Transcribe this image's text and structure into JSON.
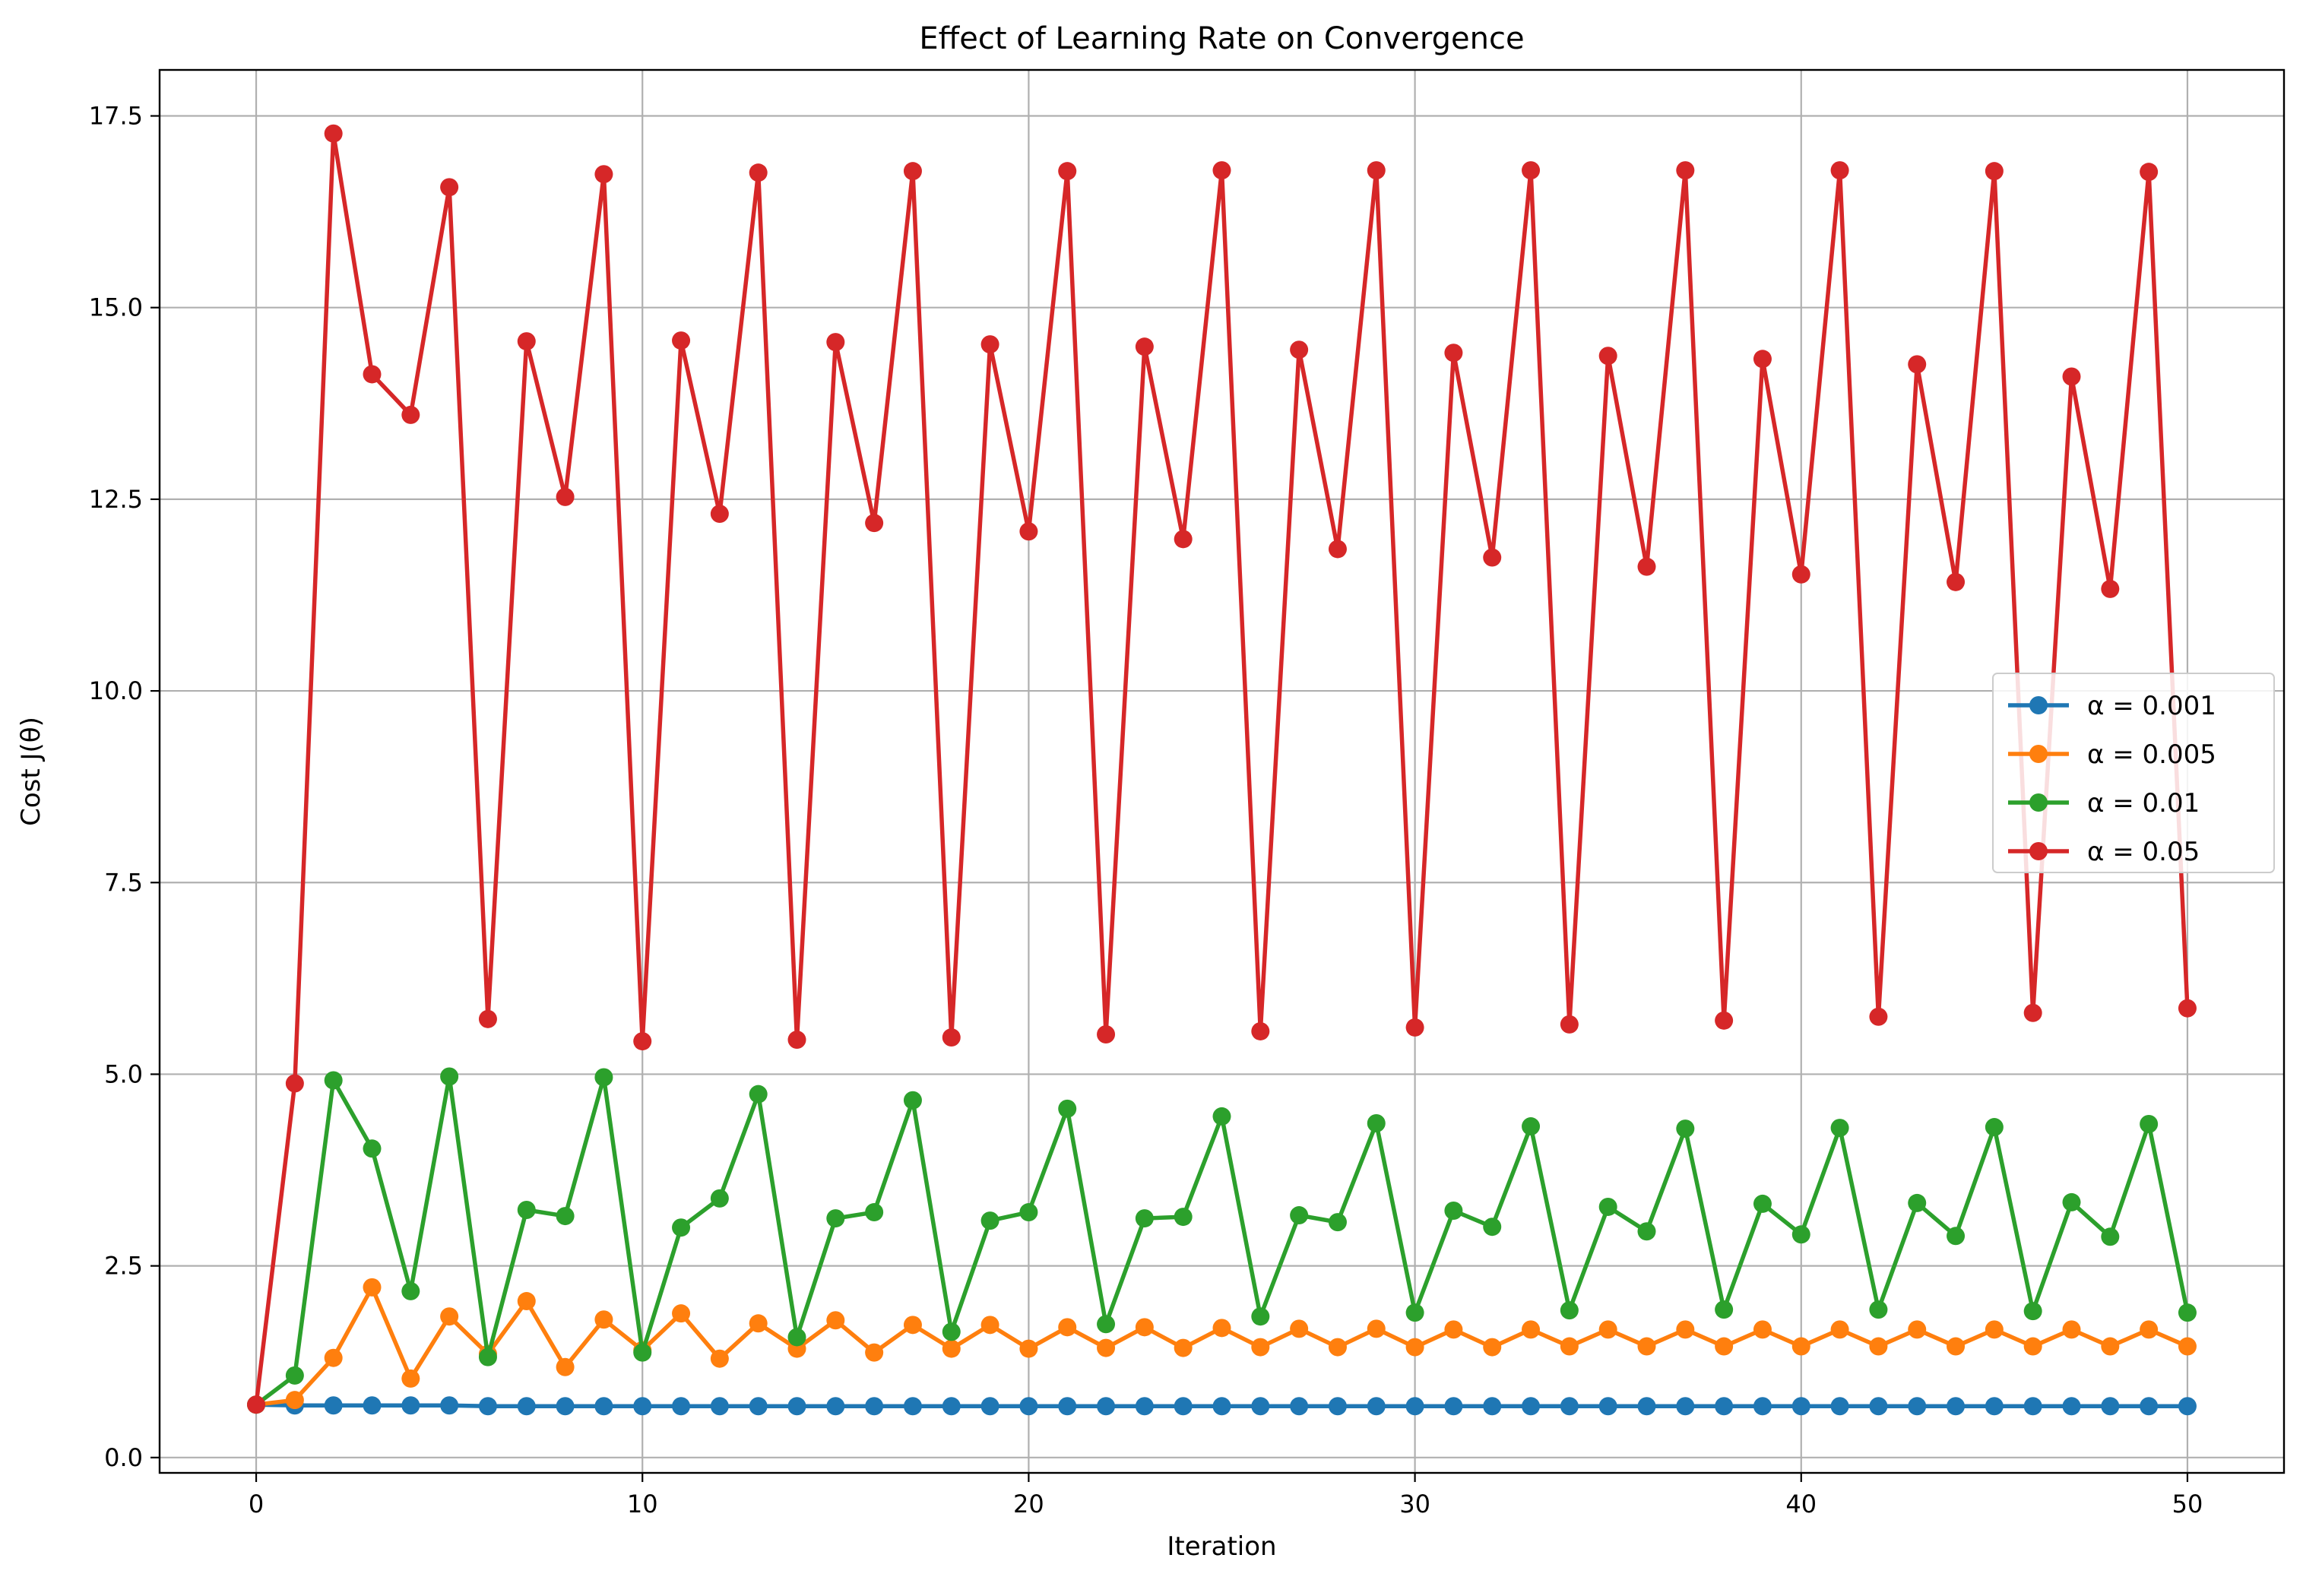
{
  "chart_data": {
    "type": "line",
    "title": "Effect of Learning Rate on Convergence",
    "xlabel": "Iteration",
    "ylabel": "Cost J(θ)",
    "xlim": [
      -2.5,
      52.5
    ],
    "ylim": [
      -0.2,
      18.1
    ],
    "xticks": [
      0,
      10,
      20,
      30,
      40,
      50
    ],
    "xtick_labels": [
      "0",
      "10",
      "20",
      "30",
      "40",
      "50"
    ],
    "yticks": [
      0.0,
      2.5,
      5.0,
      7.5,
      10.0,
      12.5,
      15.0,
      17.5
    ],
    "ytick_labels": [
      "0.0",
      "2.5",
      "5.0",
      "7.5",
      "10.0",
      "12.5",
      "15.0",
      "17.5"
    ],
    "grid": true,
    "legend_position": "center-right",
    "x": [
      0,
      1,
      2,
      3,
      4,
      5,
      6,
      7,
      8,
      9,
      10,
      11,
      12,
      13,
      14,
      15,
      16,
      17,
      18,
      19,
      20,
      21,
      22,
      23,
      24,
      25,
      26,
      27,
      28,
      29,
      30,
      31,
      32,
      33,
      34,
      35,
      36,
      37,
      38,
      39,
      40,
      41,
      42,
      43,
      44,
      45,
      46,
      47,
      48,
      49,
      50
    ],
    "series": [
      {
        "name": "α = 0.001",
        "color": "#1f77b4",
        "values": [
          0.69,
          0.68,
          0.68,
          0.68,
          0.68,
          0.68,
          0.67,
          0.67,
          0.67,
          0.67,
          0.67,
          0.67,
          0.67,
          0.67,
          0.67,
          0.67,
          0.67,
          0.67,
          0.67,
          0.67,
          0.67,
          0.67,
          0.67,
          0.67,
          0.67,
          0.67,
          0.67,
          0.67,
          0.67,
          0.67,
          0.67,
          0.67,
          0.67,
          0.67,
          0.67,
          0.67,
          0.67,
          0.67,
          0.67,
          0.67,
          0.67,
          0.67,
          0.67,
          0.67,
          0.67,
          0.67,
          0.67,
          0.67,
          0.67,
          0.67,
          0.67
        ]
      },
      {
        "name": "α = 0.005",
        "color": "#ff7f0e",
        "values": [
          0.69,
          0.75,
          1.3,
          2.22,
          1.03,
          1.84,
          1.35,
          2.04,
          1.18,
          1.8,
          1.4,
          1.88,
          1.29,
          1.75,
          1.42,
          1.79,
          1.37,
          1.73,
          1.42,
          1.73,
          1.42,
          1.7,
          1.43,
          1.7,
          1.43,
          1.69,
          1.44,
          1.68,
          1.44,
          1.68,
          1.44,
          1.67,
          1.44,
          1.67,
          1.45,
          1.67,
          1.45,
          1.67,
          1.45,
          1.67,
          1.45,
          1.67,
          1.45,
          1.67,
          1.45,
          1.67,
          1.45,
          1.67,
          1.45,
          1.67,
          1.45
        ]
      },
      {
        "name": "α = 0.01",
        "color": "#2ca02c",
        "values": [
          0.69,
          1.07,
          4.92,
          4.03,
          2.17,
          4.97,
          1.31,
          3.23,
          3.15,
          4.96,
          1.37,
          3.0,
          3.38,
          4.74,
          1.57,
          3.12,
          3.2,
          4.66,
          1.64,
          3.09,
          3.2,
          4.55,
          1.74,
          3.12,
          3.14,
          4.45,
          1.84,
          3.16,
          3.07,
          4.36,
          1.89,
          3.22,
          3.01,
          4.32,
          1.92,
          3.27,
          2.95,
          4.29,
          1.93,
          3.31,
          2.91,
          4.3,
          1.93,
          3.32,
          2.89,
          4.31,
          1.91,
          3.33,
          2.88,
          4.35,
          1.89
        ]
      },
      {
        "name": "α = 0.05",
        "color": "#d62728",
        "values": [
          0.69,
          4.88,
          17.27,
          14.13,
          13.6,
          16.57,
          5.72,
          14.56,
          12.53,
          16.74,
          5.43,
          14.57,
          12.31,
          16.76,
          5.45,
          14.55,
          12.19,
          16.78,
          5.48,
          14.52,
          12.08,
          16.78,
          5.52,
          14.49,
          11.98,
          16.79,
          5.56,
          14.45,
          11.85,
          16.79,
          5.61,
          14.41,
          11.74,
          16.79,
          5.65,
          14.37,
          11.62,
          16.79,
          5.7,
          14.33,
          11.52,
          16.79,
          5.75,
          14.26,
          11.42,
          16.78,
          5.8,
          14.1,
          11.33,
          16.77,
          5.86
        ]
      }
    ]
  }
}
